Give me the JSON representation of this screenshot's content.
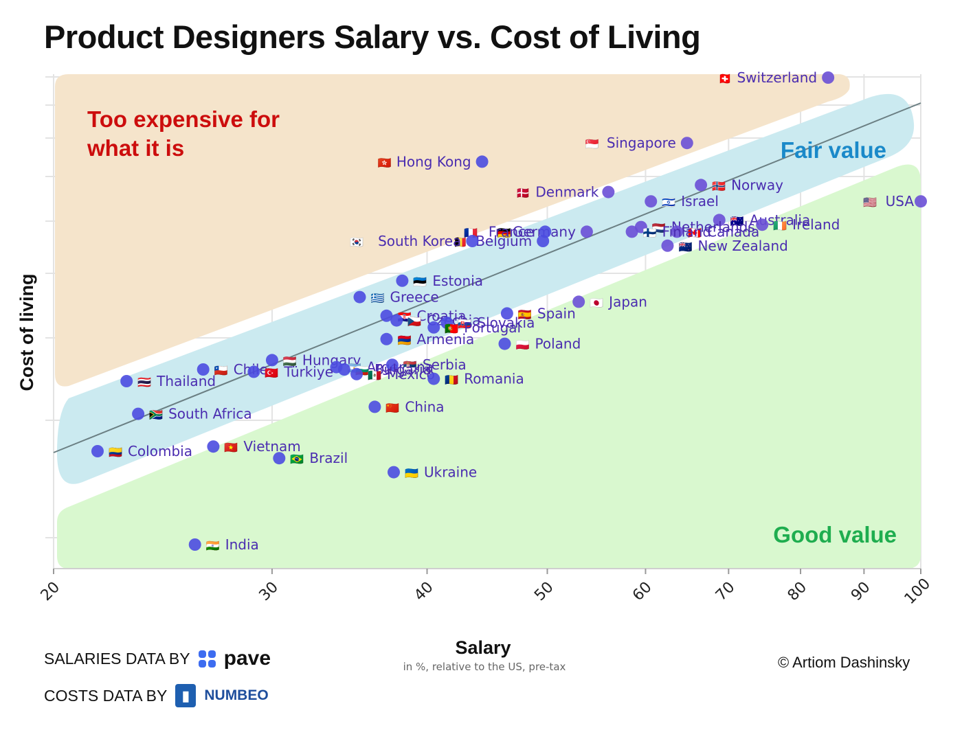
{
  "title": "Product Designers Salary vs. Cost of Living",
  "credits": {
    "salaries_prefix": "SALARIES DATA BY",
    "salaries_brand": "pave",
    "costs_prefix": "COSTS DATA BY",
    "costs_brand": "NUMBEO",
    "copyright": "© Artiom Dashinsky"
  },
  "colors": {
    "expensive_zone": "#f5e4cb",
    "fair_zone": "#cbeaf0",
    "good_zone": "#d9f8cf",
    "expensive_text": "#cc0d0d",
    "fair_text": "#1a89c9",
    "good_text": "#1fad4f",
    "point": "#4b4be0",
    "label": "#4a2cb0"
  },
  "chart_data": {
    "type": "scatter",
    "title": "Product Designers Salary vs. Cost of Living",
    "xlabel": "Salary",
    "xlabel_sub": "in %, relative to the US, pre-tax",
    "ylabel": "Cost of living",
    "x_scale": "log",
    "xlim": [
      20,
      100
    ],
    "x_ticks": [
      20,
      30,
      40,
      50,
      60,
      70,
      80,
      90,
      100
    ],
    "y_range": [
      0,
      100
    ],
    "zones": [
      {
        "name": "Too expensive for what it is",
        "lines": [
          "Too expensive for",
          "what it is"
        ],
        "position": "top-left"
      },
      {
        "name": "Fair value",
        "lines": [
          "Fair value"
        ],
        "position": "diagonal"
      },
      {
        "name": "Good value",
        "lines": [
          "Good value"
        ],
        "position": "bottom-right"
      }
    ],
    "points": [
      {
        "label": "Switzerland",
        "flag": "🇨🇭",
        "x": 84.2,
        "y": 100
      },
      {
        "label": "Singapore",
        "flag": "🇸🇬",
        "x": 64.8,
        "y": 86
      },
      {
        "label": "Hong Kong",
        "flag": "🇭🇰",
        "x": 44.3,
        "y": 82
      },
      {
        "label": "Norway",
        "flag": "🇳🇴",
        "x": 66.5,
        "y": 77
      },
      {
        "label": "Denmark",
        "flag": "🇩🇰",
        "x": 56,
        "y": 75.5
      },
      {
        "label": "Israel",
        "flag": "🇮🇱",
        "x": 60.6,
        "y": 73.5
      },
      {
        "label": "USA",
        "flag": "🇺🇸",
        "x": 100,
        "y": 73.5
      },
      {
        "label": "Australia",
        "flag": "🇦🇺",
        "x": 68.8,
        "y": 69.5
      },
      {
        "label": "Ireland",
        "flag": "🇮🇪",
        "x": 74.5,
        "y": 68.5
      },
      {
        "label": "Netherlands",
        "flag": "🇳🇱",
        "x": 59.5,
        "y": 68
      },
      {
        "label": "Canada",
        "flag": "🇨🇦",
        "x": 63.6,
        "y": 67
      },
      {
        "label": "Finland",
        "flag": "🇫🇮",
        "x": 58.5,
        "y": 67
      },
      {
        "label": "Germany",
        "flag": "🇩🇪",
        "x": 53.8,
        "y": 67
      },
      {
        "label": "France",
        "flag": "🇫🇷",
        "x": 49.8,
        "y": 67
      },
      {
        "label": "Belgium",
        "flag": "🇧🇪",
        "x": 49.6,
        "y": 65
      },
      {
        "label": "South Korea",
        "flag": "🇰🇷",
        "x": 43.5,
        "y": 65
      },
      {
        "label": "New Zealand",
        "flag": "🇳🇿",
        "x": 62.5,
        "y": 64
      },
      {
        "label": "Estonia",
        "flag": "🇪🇪",
        "x": 38.2,
        "y": 56.5
      },
      {
        "label": "Greece",
        "flag": "🇬🇷",
        "x": 35.3,
        "y": 53
      },
      {
        "label": "Japan",
        "flag": "🇯🇵",
        "x": 53,
        "y": 52
      },
      {
        "label": "Spain",
        "flag": "🇪🇸",
        "x": 46.4,
        "y": 49.5
      },
      {
        "label": "Croatia",
        "flag": "🇭🇷",
        "x": 37.1,
        "y": 49
      },
      {
        "label": "Czechia",
        "flag": "🇨🇿",
        "x": 37.8,
        "y": 48
      },
      {
        "label": "Slovakia",
        "flag": "🇸🇰",
        "x": 41.5,
        "y": 47.5
      },
      {
        "label": "Portugal",
        "flag": "🇵🇹",
        "x": 40.5,
        "y": 46.5
      },
      {
        "label": "Armenia",
        "flag": "🇦🇲",
        "x": 37.1,
        "y": 44
      },
      {
        "label": "Poland",
        "flag": "🇵🇱",
        "x": 46.2,
        "y": 43
      },
      {
        "label": "Hungary",
        "flag": "🇭🇺",
        "x": 30,
        "y": 39.5
      },
      {
        "label": "Argentina",
        "flag": "🇦🇷",
        "x": 33.8,
        "y": 38
      },
      {
        "label": "Serbia",
        "flag": "🇷🇸",
        "x": 37.5,
        "y": 38.5
      },
      {
        "label": "Bulgaria",
        "flag": "🇧🇬",
        "x": 34.3,
        "y": 37.5
      },
      {
        "label": "Chile",
        "flag": "🇨🇱",
        "x": 26.4,
        "y": 37.5
      },
      {
        "label": "Türkiye",
        "flag": "🇹🇷",
        "x": 29,
        "y": 37
      },
      {
        "label": "Mexico",
        "flag": "🇲🇽",
        "x": 35.1,
        "y": 36.5
      },
      {
        "label": "Romania",
        "flag": "🇷🇴",
        "x": 40.5,
        "y": 35.5
      },
      {
        "label": "Thailand",
        "flag": "🇹🇭",
        "x": 22.9,
        "y": 35
      },
      {
        "label": "China",
        "flag": "🇨🇳",
        "x": 36.3,
        "y": 29.5
      },
      {
        "label": "South Africa",
        "flag": "🇿🇦",
        "x": 23.4,
        "y": 28
      },
      {
        "label": "Vietnam",
        "flag": "🇻🇳",
        "x": 26.9,
        "y": 21
      },
      {
        "label": "Colombia",
        "flag": "🇨🇴",
        "x": 21.7,
        "y": 20
      },
      {
        "label": "Brazil",
        "flag": "🇧🇷",
        "x": 30.4,
        "y": 18.5
      },
      {
        "label": "Ukraine",
        "flag": "🇺🇦",
        "x": 37.6,
        "y": 15.5
      },
      {
        "label": "India",
        "flag": "🇮🇳",
        "x": 26,
        "y": 0
      }
    ]
  }
}
